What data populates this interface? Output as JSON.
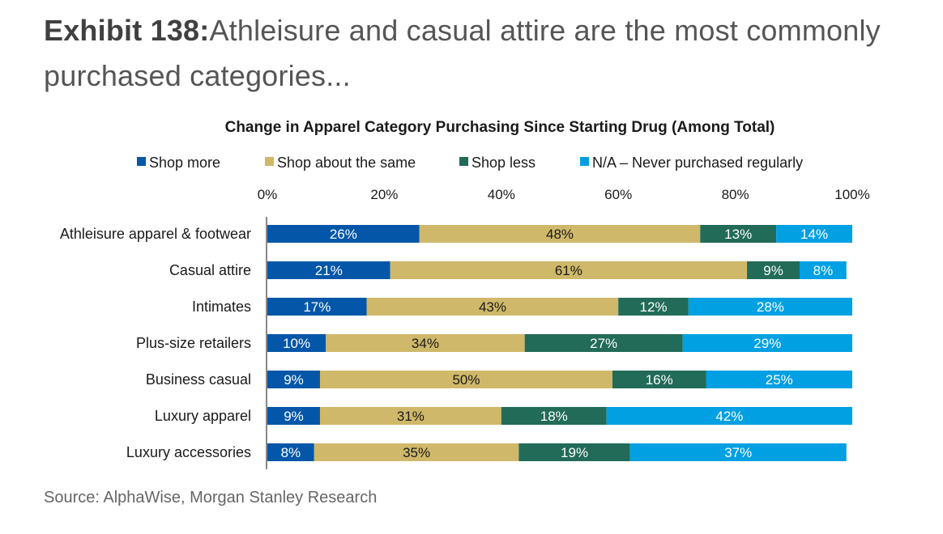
{
  "exhibit": {
    "number": "Exhibit 138:",
    "title": "Athleisure and casual attire are the most commonly purchased categories..."
  },
  "source": "Source: AlphaWise, Morgan Stanley Research",
  "chart_data": {
    "type": "bar",
    "orientation": "horizontal",
    "stacked": true,
    "title": "Change in Apparel Category Purchasing Since Starting Drug (Among Total)",
    "xlabel": "",
    "ylabel": "",
    "xlim": [
      0,
      100
    ],
    "x_ticks": [
      "0%",
      "20%",
      "40%",
      "60%",
      "80%",
      "100%"
    ],
    "x_tick_values": [
      0,
      20,
      40,
      60,
      80,
      100
    ],
    "axis_position": "top",
    "grid": false,
    "legend_position": "top",
    "categories": [
      "Athleisure apparel & footwear",
      "Casual attire",
      "Intimates",
      "Plus-size retailers",
      "Business casual",
      "Luxury apparel",
      "Luxury accessories"
    ],
    "series": [
      {
        "name": "Shop more",
        "color": "#0457A8",
        "label_color": "#ffffff",
        "values": [
          26,
          21,
          17,
          10,
          9,
          9,
          8
        ]
      },
      {
        "name": "Shop about the same",
        "color": "#CFB86A",
        "label_color": "#1a1a1a",
        "values": [
          48,
          61,
          43,
          34,
          50,
          31,
          35
        ]
      },
      {
        "name": "Shop less",
        "color": "#226B58",
        "label_color": "#ffffff",
        "values": [
          13,
          9,
          12,
          27,
          16,
          18,
          19
        ]
      },
      {
        "name": "N/A – Never purchased regularly",
        "color": "#00A0E3",
        "label_color": "#ffffff",
        "values": [
          14,
          8,
          28,
          29,
          25,
          42,
          37
        ]
      }
    ],
    "value_suffix": "%"
  }
}
